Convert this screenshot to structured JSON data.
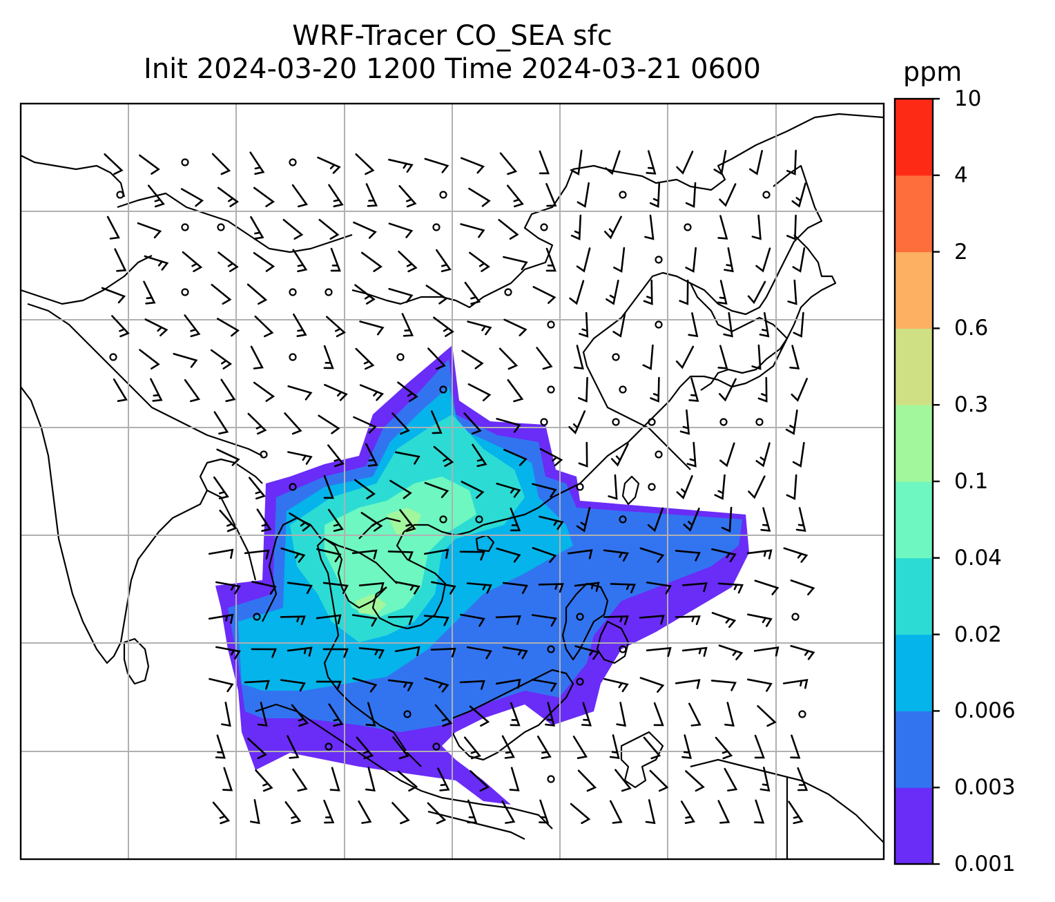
{
  "title": {
    "line1": "WRF-Tracer CO_SEA sfc",
    "line2": "Init 2024-03-20 1200 Time 2024-03-21 0600"
  },
  "colorbar": {
    "unit": "ppm",
    "levels": [
      "0.001",
      "0.003",
      "0.006",
      "0.02",
      "0.04",
      "0.1",
      "0.3",
      "0.6",
      "2",
      "4",
      "10"
    ],
    "colors": [
      "#6a2cf7",
      "#3274f0",
      "#05b4ea",
      "#2cdcd4",
      "#6ef7c0",
      "#a2f79c",
      "#cfe084",
      "#fdb062",
      "#fe6e3c",
      "#fd2a16"
    ]
  },
  "map": {
    "tracer_fill": "CO_SEA surface concentration",
    "gridline_color": "#b0b0b0",
    "coastline_color": "#000000",
    "wind_barbs": "black"
  }
}
